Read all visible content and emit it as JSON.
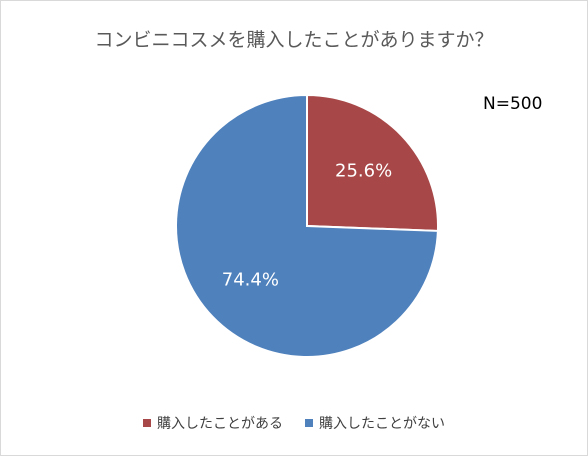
{
  "chart_data": {
    "type": "pie",
    "title": "コンビニコスメを購入したことがありますか？",
    "note": "N=500",
    "categories": [
      "購入したことがある",
      "購入したことがない"
    ],
    "values": [
      25.6,
      74.4
    ],
    "value_labels": [
      "25.6%",
      "74.4%"
    ],
    "colors": [
      "#A84747",
      "#4F81BD"
    ],
    "start_angle_deg": 0,
    "direction": "clockwise",
    "legend_position": "bottom"
  }
}
